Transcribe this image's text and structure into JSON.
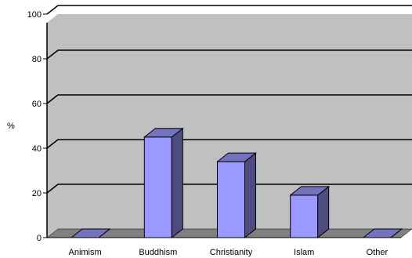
{
  "chart_data": {
    "type": "bar",
    "title": "",
    "xlabel": "",
    "ylabel": "%",
    "categories": [
      "Animism",
      "Buddhism",
      "Christianity",
      "Islam",
      "Other"
    ],
    "values": [
      0,
      45,
      34,
      19,
      0
    ],
    "ylim": [
      0,
      100
    ],
    "yticks": [
      "0",
      "20",
      "40",
      "60",
      "80",
      "100"
    ],
    "grid": true,
    "style": "3d-bar",
    "colors": {
      "bar_front": "#9999ff",
      "bar_side": "#4c4c80",
      "bar_top": "#7373bf",
      "plot_wall": "#c0c0c0",
      "floor": "#808080",
      "gridline": "#000000"
    }
  }
}
